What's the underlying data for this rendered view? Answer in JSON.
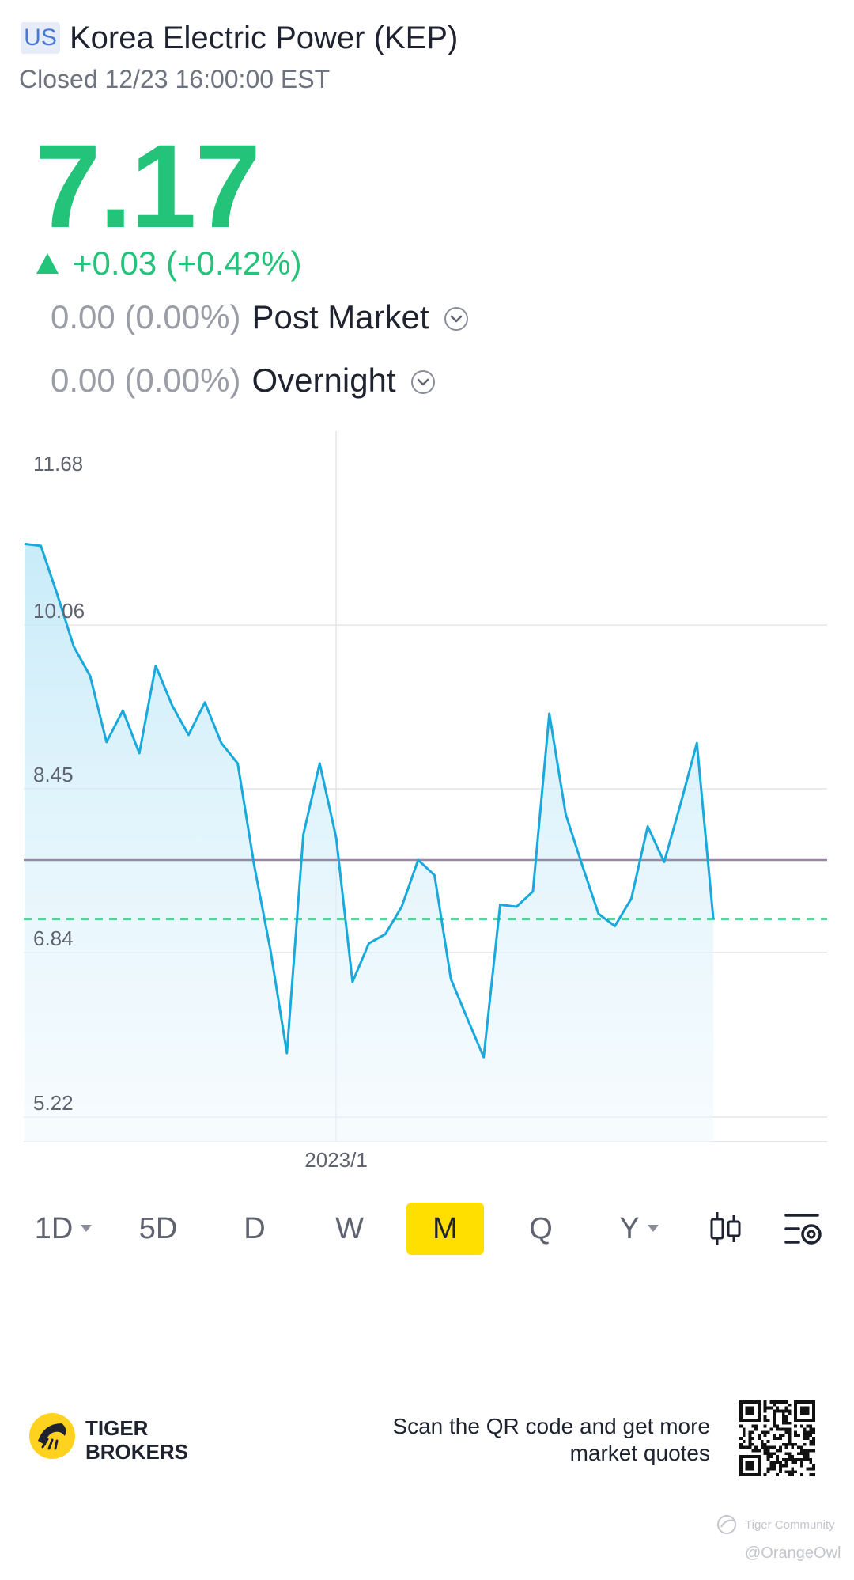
{
  "header": {
    "market_badge": "US",
    "title": "Korea Electric Power (KEP)",
    "status": "Closed 12/23 16:00:00 EST"
  },
  "quote": {
    "price": "7.17",
    "change": "+0.03 (+0.42%)",
    "post_market": {
      "value": "0.00 (0.00%)",
      "label": "Post Market"
    },
    "overnight": {
      "value": "0.00 (0.00%)",
      "label": "Overnight"
    }
  },
  "colors": {
    "up": "#23c37a",
    "line": "#19a9dc",
    "reference_line": "#9b85a8",
    "highlight": "#ffdf00"
  },
  "chart_data": {
    "type": "area",
    "y_tick_labels": [
      "11.68",
      "10.06",
      "8.45",
      "6.84",
      "5.22"
    ],
    "y_ticks": [
      11.68,
      10.06,
      8.45,
      6.84,
      5.22
    ],
    "ylim": [
      5.22,
      11.68
    ],
    "x_tick_label": "2023/1",
    "x_tick_index": 19,
    "reference_value": 7.75,
    "last_close": 7.17,
    "grid": true,
    "series": [
      {
        "values": [
          10.86,
          10.84,
          10.36,
          9.85,
          9.56,
          8.91,
          9.22,
          8.8,
          9.66,
          9.27,
          8.98,
          9.3,
          8.9,
          8.7,
          7.7,
          6.86,
          5.85,
          8.0,
          8.7,
          7.97,
          6.55,
          6.93,
          7.02,
          7.29,
          7.75,
          7.6,
          6.58,
          6.19,
          5.81,
          7.31,
          7.29,
          7.44,
          9.19,
          8.2,
          7.7,
          7.22,
          7.1,
          7.37,
          8.08,
          7.73,
          8.3,
          8.9,
          7.17
        ]
      }
    ]
  },
  "timeframes": {
    "items": [
      "1D",
      "5D",
      "D",
      "W",
      "M",
      "Q",
      "Y"
    ],
    "selected": "M"
  },
  "footer": {
    "brand_line1": "TIGER",
    "brand_line2": "BROKERS",
    "promo": "Scan the QR code and get more market quotes",
    "community": "Tiger Community",
    "handle": "@OrangeOwl"
  }
}
